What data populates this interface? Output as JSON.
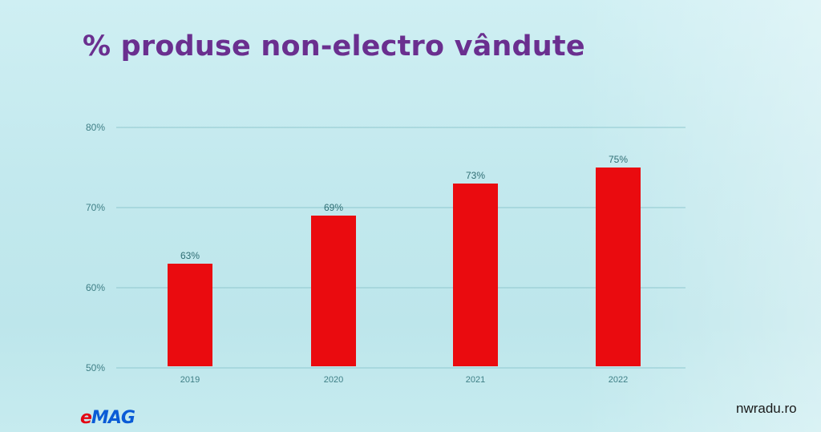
{
  "slide": {
    "title": "% produse non-electro vândute",
    "logo": {
      "text": "eMAG",
      "accent": "#e30613",
      "brand": "#0a5bd6"
    },
    "watermark": "nwradu.ro"
  },
  "colors": {
    "bar": "#ea0b0f",
    "title": "#6a2f8f",
    "gridline": "#8fc8cf",
    "text": "#3f7f86"
  },
  "chart_data": {
    "type": "bar",
    "title": "",
    "xlabel": "",
    "ylabel": "",
    "categories": [
      "2019",
      "2020",
      "2021",
      "2022"
    ],
    "values": [
      63,
      69,
      73,
      75
    ],
    "value_labels": [
      "63%",
      "69%",
      "73%",
      "75%"
    ],
    "ylim": [
      50,
      80
    ],
    "yticks": [
      50,
      60,
      70,
      80
    ],
    "ytick_labels": [
      "50%",
      "60%",
      "70%",
      "80%"
    ],
    "grid": true,
    "legend": "none"
  }
}
